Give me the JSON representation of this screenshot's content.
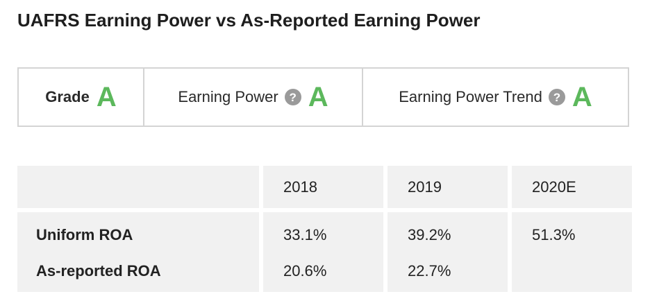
{
  "title": "UAFRS Earning Power vs As-Reported Earning Power",
  "colors": {
    "grade_green": "#5cb85c",
    "border": "#d4d4d4",
    "table_bg": "#f1f1f1"
  },
  "grades": {
    "grade": {
      "label": "Grade",
      "value": "A"
    },
    "earning_power": {
      "label": "Earning Power",
      "help_icon": "?",
      "value": "A"
    },
    "earning_power_trend": {
      "label": "Earning Power Trend",
      "help_icon": "?",
      "value": "A"
    }
  },
  "table": {
    "headers": [
      "",
      "2018",
      "2019",
      "2020E"
    ],
    "rows": [
      {
        "label": "Uniform ROA",
        "values": [
          "33.1%",
          "39.2%",
          "51.3%"
        ]
      },
      {
        "label": "As-reported ROA",
        "values": [
          "20.6%",
          "22.7%",
          ""
        ]
      }
    ]
  }
}
